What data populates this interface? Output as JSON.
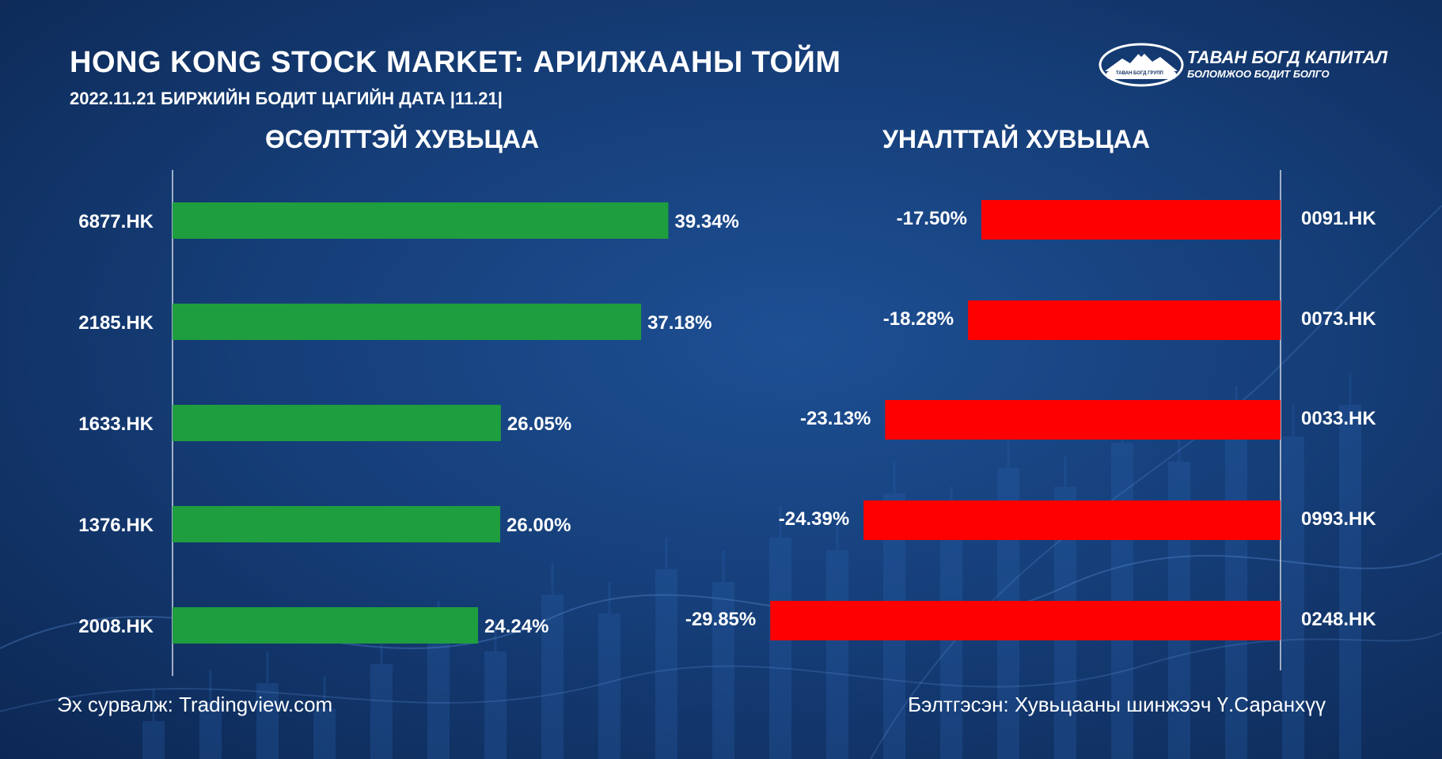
{
  "header": {
    "title": "HONG KONG STOCK MARKET: АРИЛЖААНЫ ТОЙМ",
    "subtitle": "2022.11.21 БИРЖИЙН БОДИТ ЦАГИЙН ДАТА |11.21|"
  },
  "logo": {
    "name": "ТАВАН БОГД КАПИТАЛ",
    "tagline": "БОЛОМЖОО БОДИТ БОЛГО",
    "small_text": "ТАВАН БОГД ГРУПП"
  },
  "footer": {
    "source": "Эх сурвалж: Tradingview.com",
    "author": "Бэлтгэсэн: Хувьцааны шинжээч Ү.Саранхүү"
  },
  "colors": {
    "gain_bar": "#1e9e3e",
    "loss_bar": "#ff0000",
    "text": "#ffffff"
  },
  "chart_data": [
    {
      "type": "bar",
      "orientation": "horizontal",
      "title": "ӨСӨЛТТЭЙ ХУВЬЦАА",
      "categories": [
        "6877.HK",
        "2185.HK",
        "1633.HK",
        "1376.HK",
        "2008.HK"
      ],
      "values": [
        39.34,
        37.18,
        26.05,
        26.0,
        24.24
      ],
      "labels": [
        "39.34%",
        "37.18%",
        "26.05%",
        "26.00%",
        "24.24%"
      ],
      "unit": "%"
    },
    {
      "type": "bar",
      "orientation": "horizontal",
      "title": "УНАЛТТАЙ ХУВЬЦАА",
      "categories": [
        "0091.HK",
        "0073.HK",
        "0033.HK",
        "0993.HK",
        "0248.HK"
      ],
      "values": [
        -17.5,
        -18.28,
        -23.13,
        -24.39,
        -29.85
      ],
      "labels": [
        "-17.50%",
        "-18.28%",
        "-23.13%",
        "-24.39%",
        "-29.85%"
      ],
      "unit": "%"
    }
  ]
}
